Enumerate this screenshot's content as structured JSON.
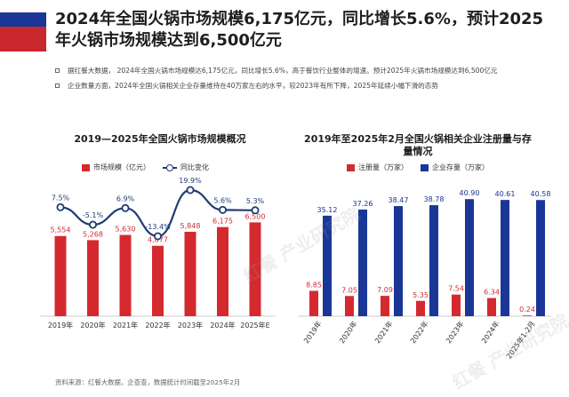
{
  "title": "2024年全国火锅市场规模6,175亿元，同比增长5.6%，预计2025年火锅市场规模达到6,500亿元",
  "bullets": [
    "据红餐大数据，  2024年全国火锅市场规模达6,175亿元，同比增长5.6%，高于餐饮行业整体的增速。预计2025年火锅市场规模达到6,500亿元",
    "企业数量方面，2024年全国火锅相关企业存量维持在40万家左右的水平，较2023年有所下降，2025年延续小幅下滑的态势"
  ],
  "source": "资料来源：红餐大数据，企查查，数据统计时间截至2025年2月",
  "watermark": "红餐 产业研究院",
  "colors": {
    "red": "#d42a2f",
    "navy": "#1a3696",
    "line": "#1f3b73"
  },
  "chart_data": [
    {
      "type": "bar",
      "title": "2019—2025年全国火锅市场规模概况",
      "categories": [
        "2019年",
        "2020年",
        "2021年",
        "2022年",
        "2023年",
        "2024年",
        "2025年E"
      ],
      "series": [
        {
          "name": "市场规模（亿元）",
          "type": "bar",
          "values": [
            5554,
            5268,
            5630,
            4877,
            5848,
            6175,
            6500
          ],
          "labels": [
            "5,554",
            "5,268",
            "5,630",
            "4,877",
            "5,848",
            "6,175",
            "6,500"
          ]
        },
        {
          "name": "同比变化",
          "type": "line",
          "values": [
            7.5,
            -5.1,
            6.9,
            -13.4,
            19.9,
            5.6,
            5.3
          ],
          "labels": [
            "7.5%",
            "-5.1%",
            "6.9%",
            "-13.4%",
            "19.9%",
            "5.6%",
            "5.3%"
          ]
        }
      ],
      "legend": "top"
    },
    {
      "type": "bar",
      "title": "2019年至2025年2月全国火锅相关企业注册量与存量情况",
      "categories": [
        "2019年",
        "2020年",
        "2021年",
        "2022年",
        "2023年",
        "2024年",
        "2025年1-2月"
      ],
      "series": [
        {
          "name": "注册量（万家）",
          "values": [
            8.85,
            7.05,
            7.09,
            5.35,
            7.54,
            6.34,
            0.24
          ]
        },
        {
          "name": "企业存量（万家）",
          "values": [
            35.12,
            37.26,
            38.47,
            38.78,
            40.9,
            40.61,
            40.58
          ]
        }
      ],
      "legend": "top"
    }
  ]
}
